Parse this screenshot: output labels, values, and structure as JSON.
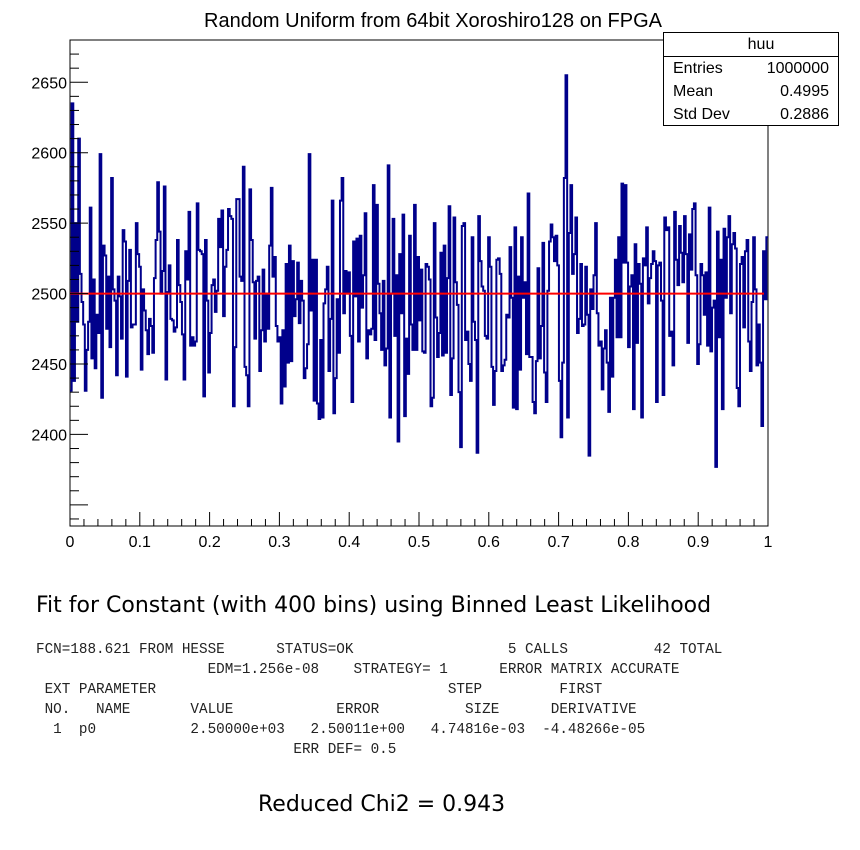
{
  "chart_data": {
    "type": "histogram",
    "title": "Random Uniform from 64bit Xoroshiro128 on FPGA",
    "xlim": [
      0,
      1
    ],
    "ylim": [
      2335,
      2680
    ],
    "x_ticks": [
      "0",
      "0.1",
      "0.2",
      "0.3",
      "0.4",
      "0.5",
      "0.6",
      "0.7",
      "0.8",
      "0.9",
      "1"
    ],
    "y_ticks": [
      "2400",
      "2450",
      "2500",
      "2550",
      "2600",
      "2650"
    ],
    "bins": 400,
    "histogram_color": "#00008b",
    "fit_line": {
      "name": "Constant fit p0",
      "value": 2500,
      "color": "#ff0000"
    },
    "values": [
      2431,
      2635,
      2438,
      2550,
      2480,
      2610,
      2514,
      2494,
      2478,
      2431,
      2460,
      2480,
      2561,
      2454,
      2510,
      2447,
      2485,
      2472,
      2599,
      2426,
      2534,
      2527,
      2475,
      2512,
      2462,
      2582,
      2503,
      2495,
      2442,
      2512,
      2498,
      2468,
      2545,
      2537,
      2441,
      2509,
      2531,
      2476,
      2478,
      2478,
      2550,
      2528,
      2519,
      2446,
      2503,
      2488,
      2474,
      2457,
      2482,
      2477,
      2458,
      2511,
      2538,
      2579,
      2544,
      2500,
      2516,
      2576,
      2439,
      2501,
      2520,
      2482,
      2481,
      2473,
      2476,
      2538,
      2506,
      2494,
      2471,
      2439,
      2530,
      2510,
      2558,
      2463,
      2469,
      2463,
      2466,
      2564,
      2531,
      2530,
      2528,
      2427,
      2538,
      2495,
      2444,
      2472,
      2506,
      2510,
      2487,
      2502,
      2553,
      2533,
      2559,
      2484,
      2519,
      2531,
      2560,
      2555,
      2553,
      2420,
      2462,
      2567,
      2567,
      2512,
      2509,
      2590,
      2448,
      2442,
      2420,
      2574,
      2538,
      2508,
      2468,
      2509,
      2512,
      2445,
      2474,
      2517,
      2466,
      2500,
      2475,
      2534,
      2575,
      2512,
      2526,
      2477,
      2466,
      2469,
      2422,
      2474,
      2434,
      2521,
      2451,
      2534,
      2452,
      2523,
      2484,
      2496,
      2522,
      2479,
      2509,
      2495,
      2440,
      2447,
      2464,
      2599,
      2488,
      2524,
      2424,
      2524,
      2422,
      2411,
      2467,
      2412,
      2493,
      2503,
      2519,
      2445,
      2482,
      2566,
      2415,
      2440,
      2496,
      2458,
      2566,
      2582,
      2486,
      2516,
      2500,
      2515,
      2470,
      2423,
      2537,
      2498,
      2539,
      2466,
      2541,
      2490,
      2513,
      2557,
      2454,
      2474,
      2471,
      2475,
      2577,
      2467,
      2563,
      2507,
      2486,
      2460,
      2509,
      2449,
      2461,
      2591,
      2412,
      2500,
      2553,
      2470,
      2513,
      2395,
      2528,
      2486,
      2556,
      2413,
      2468,
      2443,
      2541,
      2478,
      2460,
      2563,
      2460,
      2526,
      2481,
      2517,
      2459,
      2458,
      2521,
      2519,
      2510,
      2420,
      2426,
      2550,
      2483,
      2455,
      2472,
      2529,
      2456,
      2534,
      2458,
      2511,
      2562,
      2428,
      2454,
      2554,
      2508,
      2492,
      2430,
      2391,
      2548,
      2550,
      2467,
      2473,
      2450,
      2438,
      2540,
      2480,
      2467,
      2387,
      2555,
      2523,
      2505,
      2502,
      2470,
      2468,
      2540,
      2519,
      2448,
      2421,
      2445,
      2524,
      2525,
      2514,
      2445,
      2449,
      2453,
      2485,
      2483,
      2533,
      2497,
      2419,
      2547,
      2418,
      2512,
      2446,
      2540,
      2497,
      2508,
      2457,
      2571,
      2455,
      2455,
      2423,
      2415,
      2452,
      2518,
      2454,
      2477,
      2536,
      2444,
      2423,
      2502,
      2537,
      2549,
      2540,
      2523,
      2541,
      2520,
      2438,
      2398,
      2451,
      2582,
      2655,
      2412,
      2543,
      2577,
      2514,
      2528,
      2554,
      2472,
      2482,
      2521,
      2477,
      2478,
      2519,
      2485,
      2385,
      2503,
      2489,
      2513,
      2550,
      2486,
      2463,
      2466,
      2432,
      2461,
      2474,
      2451,
      2416,
      2497,
      2441,
      2497,
      2524,
      2469,
      2540,
      2469,
      2578,
      2522,
      2577,
      2522,
      2462,
      2505,
      2513,
      2418,
      2535,
      2465,
      2521,
      2507,
      2412,
      2525,
      2520,
      2547,
      2493,
      2511,
      2521,
      2530,
      2523,
      2423,
      2520,
      2522,
      2495,
      2428,
      2554,
      2545,
      2547,
      2470,
      2473,
      2449,
      2558,
      2524,
      2506,
      2548,
      2529,
      2508,
      2555,
      2528,
      2465,
      2542,
      2517,
      2560,
      2564,
      2513,
      2450,
      2464,
      2521,
      2513,
      2485,
      2515,
      2463,
      2561,
      2459,
      2490,
      2495,
      2377,
      2544,
      2469,
      2524,
      2418,
      2546,
      2497,
      2540,
      2555,
      2486,
      2535,
      2543,
      2532,
      2433,
      2420,
      2521,
      2526,
      2476,
      2530,
      2538,
      2466,
      2445,
      2494,
      2540,
      2503,
      2449,
      2478,
      2451,
      2406,
      2530,
      2496,
      2540
    ]
  },
  "stats": {
    "name": "huu",
    "rows": [
      {
        "label": "Entries",
        "value": "1000000"
      },
      {
        "label": "Mean",
        "value": "0.4995"
      },
      {
        "label": "Std Dev",
        "value": "0.2886"
      }
    ]
  },
  "fit_heading": "Fit for Constant (with 400 bins) using Binned Least Likelihood",
  "fit_output": {
    "lines": [
      "FCN=188.621 FROM HESSE      STATUS=OK                  5 CALLS          42 TOTAL",
      "                    EDM=1.256e-08    STRATEGY= 1      ERROR MATRIX ACCURATE",
      " EXT PARAMETER                                  STEP         FIRST",
      " NO.   NAME       VALUE            ERROR          SIZE      DERIVATIVE",
      "  1  p0           2.50000e+03   2.50011e+00   4.74816e-03  -4.48266e-05",
      "                              ERR DEF= 0.5"
    ]
  },
  "chi2_text": "Reduced Chi2 = 0.943"
}
